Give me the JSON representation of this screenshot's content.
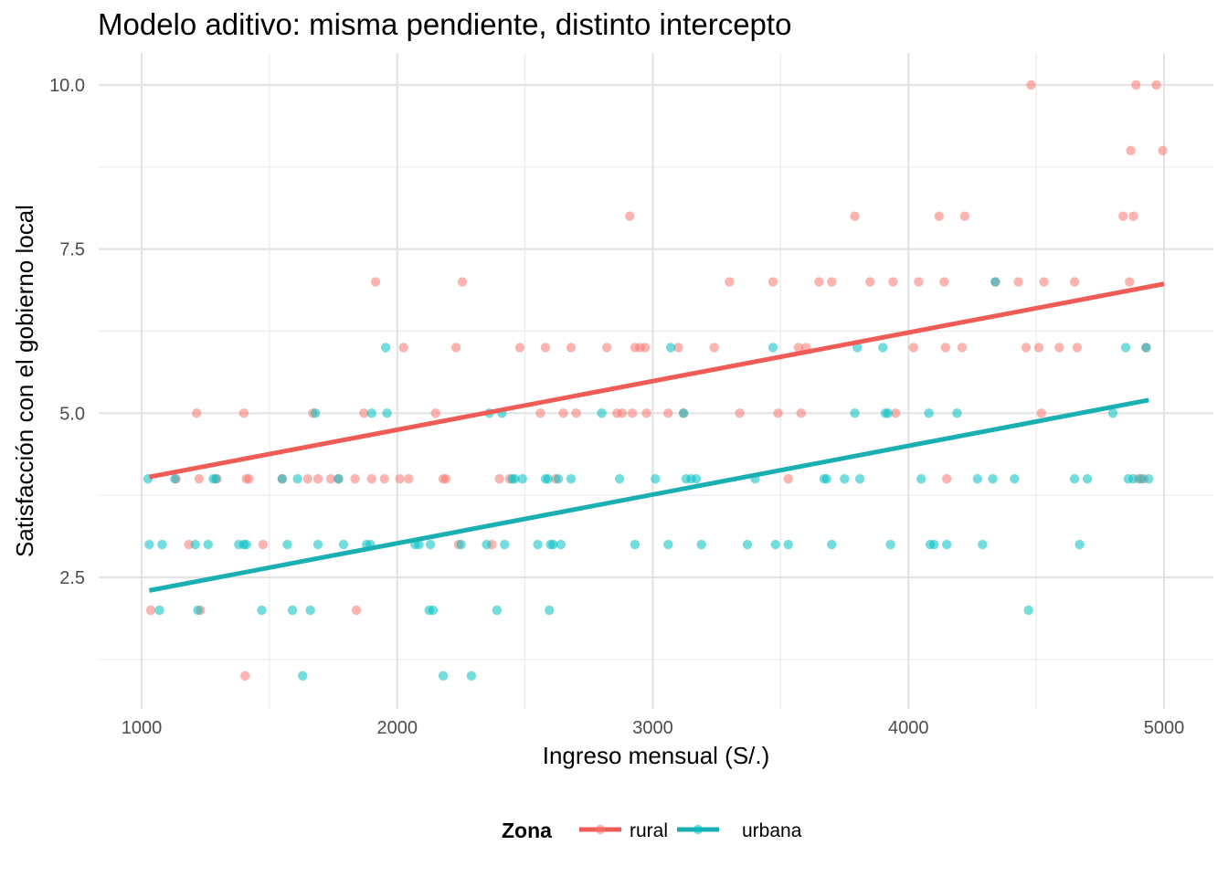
{
  "chart_data": {
    "type": "scatter",
    "title": "Modelo aditivo: misma pendiente, distinto intercepto",
    "xlabel": "Ingreso mensual (S/.)",
    "ylabel": "Satisfacción con el gobierno local",
    "xlim": [
      860,
      5200
    ],
    "ylim": [
      0.5,
      10.5
    ],
    "x_ticks": [
      1000,
      2000,
      3000,
      4000,
      5000
    ],
    "x_tick_labels": [
      "1000",
      "2000",
      "3000",
      "4000",
      "5000"
    ],
    "y_ticks": [
      2.5,
      5.0,
      7.5,
      10.0
    ],
    "y_tick_labels": [
      "2.5",
      "5.0",
      "7.5",
      "10.0"
    ],
    "grid": true,
    "legend": {
      "title": "Zona",
      "position": "bottom"
    },
    "series": [
      {
        "name": "rural",
        "color": "#F8766D",
        "line_color": "#EF5B55",
        "points": [
          [
            1036,
            2
          ],
          [
            1135,
            4
          ],
          [
            1185,
            3
          ],
          [
            1215,
            5
          ],
          [
            1225,
            4
          ],
          [
            1230,
            2
          ],
          [
            1295,
            4
          ],
          [
            1400,
            5
          ],
          [
            1405,
            1
          ],
          [
            1410,
            4
          ],
          [
            1420,
            4
          ],
          [
            1475,
            3
          ],
          [
            1550,
            4
          ],
          [
            1650,
            4
          ],
          [
            1670,
            5
          ],
          [
            1690,
            4
          ],
          [
            1740,
            4
          ],
          [
            1770,
            4
          ],
          [
            1835,
            4
          ],
          [
            1840,
            2
          ],
          [
            1870,
            5
          ],
          [
            1900,
            4
          ],
          [
            1915,
            7
          ],
          [
            1950,
            4
          ],
          [
            2010,
            4
          ],
          [
            2025,
            6
          ],
          [
            2045,
            4
          ],
          [
            2150,
            5
          ],
          [
            2180,
            4
          ],
          [
            2190,
            4
          ],
          [
            2230,
            6
          ],
          [
            2240,
            3
          ],
          [
            2255,
            7
          ],
          [
            2370,
            3
          ],
          [
            2400,
            4
          ],
          [
            2440,
            4
          ],
          [
            2480,
            6
          ],
          [
            2560,
            5
          ],
          [
            2580,
            6
          ],
          [
            2620,
            4
          ],
          [
            2650,
            5
          ],
          [
            2680,
            6
          ],
          [
            2700,
            5
          ],
          [
            2820,
            6
          ],
          [
            2860,
            5
          ],
          [
            2880,
            5
          ],
          [
            2910,
            8
          ],
          [
            2920,
            5
          ],
          [
            2930,
            6
          ],
          [
            2950,
            6
          ],
          [
            2970,
            6
          ],
          [
            2975,
            5
          ],
          [
            3060,
            5
          ],
          [
            3100,
            6
          ],
          [
            3120,
            5
          ],
          [
            3240,
            6
          ],
          [
            3300,
            7
          ],
          [
            3340,
            5
          ],
          [
            3470,
            7
          ],
          [
            3490,
            5
          ],
          [
            3530,
            4
          ],
          [
            3570,
            6
          ],
          [
            3580,
            5
          ],
          [
            3600,
            6
          ],
          [
            3650,
            7
          ],
          [
            3700,
            7
          ],
          [
            3790,
            8
          ],
          [
            3850,
            7
          ],
          [
            3940,
            7
          ],
          [
            3950,
            5
          ],
          [
            4020,
            6
          ],
          [
            4040,
            7
          ],
          [
            4120,
            8
          ],
          [
            4140,
            7
          ],
          [
            4145,
            6
          ],
          [
            4150,
            4
          ],
          [
            4210,
            6
          ],
          [
            4220,
            8
          ],
          [
            4340,
            7
          ],
          [
            4430,
            7
          ],
          [
            4460,
            6
          ],
          [
            4480,
            10
          ],
          [
            4510,
            6
          ],
          [
            4520,
            5
          ],
          [
            4530,
            7
          ],
          [
            4590,
            6
          ],
          [
            4650,
            7
          ],
          [
            4660,
            6
          ],
          [
            4840,
            8
          ],
          [
            4865,
            7
          ],
          [
            4870,
            9
          ],
          [
            4880,
            8
          ],
          [
            4890,
            10
          ],
          [
            4900,
            4
          ],
          [
            4920,
            4
          ],
          [
            4930,
            6
          ],
          [
            4970,
            10
          ],
          [
            4995,
            9
          ]
        ],
        "fit": [
          [
            1030,
            4.03
          ],
          [
            5000,
            6.97
          ]
        ]
      },
      {
        "name": "urbana",
        "color": "#00BFC4",
        "line_color": "#1AAFB2",
        "points": [
          [
            1025,
            4
          ],
          [
            1030,
            3
          ],
          [
            1070,
            2
          ],
          [
            1080,
            3
          ],
          [
            1130,
            4
          ],
          [
            1210,
            3
          ],
          [
            1220,
            2
          ],
          [
            1260,
            3
          ],
          [
            1280,
            4
          ],
          [
            1290,
            4
          ],
          [
            1380,
            3
          ],
          [
            1400,
            3
          ],
          [
            1410,
            3
          ],
          [
            1470,
            2
          ],
          [
            1550,
            4
          ],
          [
            1570,
            3
          ],
          [
            1590,
            2
          ],
          [
            1610,
            4
          ],
          [
            1630,
            1
          ],
          [
            1660,
            2
          ],
          [
            1680,
            5
          ],
          [
            1690,
            3
          ],
          [
            1770,
            4
          ],
          [
            1790,
            3
          ],
          [
            1880,
            3
          ],
          [
            1895,
            3
          ],
          [
            1900,
            5
          ],
          [
            1955,
            6
          ],
          [
            1960,
            5
          ],
          [
            2070,
            3
          ],
          [
            2085,
            3
          ],
          [
            2125,
            2
          ],
          [
            2130,
            3
          ],
          [
            2140,
            2
          ],
          [
            2180,
            1
          ],
          [
            2250,
            3
          ],
          [
            2290,
            1
          ],
          [
            2350,
            3
          ],
          [
            2360,
            5
          ],
          [
            2390,
            2
          ],
          [
            2410,
            5
          ],
          [
            2420,
            3
          ],
          [
            2450,
            4
          ],
          [
            2460,
            4
          ],
          [
            2490,
            4
          ],
          [
            2550,
            3
          ],
          [
            2580,
            4
          ],
          [
            2590,
            4
          ],
          [
            2595,
            2
          ],
          [
            2600,
            3
          ],
          [
            2610,
            3
          ],
          [
            2630,
            4
          ],
          [
            2640,
            3
          ],
          [
            2680,
            4
          ],
          [
            2800,
            5
          ],
          [
            2870,
            4
          ],
          [
            2930,
            3
          ],
          [
            3010,
            4
          ],
          [
            3060,
            3
          ],
          [
            3070,
            6
          ],
          [
            3120,
            5
          ],
          [
            3130,
            4
          ],
          [
            3150,
            4
          ],
          [
            3170,
            4
          ],
          [
            3190,
            3
          ],
          [
            3370,
            3
          ],
          [
            3400,
            4
          ],
          [
            3470,
            6
          ],
          [
            3480,
            3
          ],
          [
            3530,
            3
          ],
          [
            3670,
            4
          ],
          [
            3680,
            4
          ],
          [
            3700,
            3
          ],
          [
            3750,
            4
          ],
          [
            3790,
            5
          ],
          [
            3800,
            6
          ],
          [
            3810,
            4
          ],
          [
            3900,
            6
          ],
          [
            3910,
            5
          ],
          [
            3920,
            5
          ],
          [
            3930,
            3
          ],
          [
            4050,
            4
          ],
          [
            4080,
            5
          ],
          [
            4085,
            3
          ],
          [
            4100,
            3
          ],
          [
            4150,
            3
          ],
          [
            4190,
            5
          ],
          [
            4270,
            4
          ],
          [
            4290,
            3
          ],
          [
            4330,
            4
          ],
          [
            4340,
            7
          ],
          [
            4415,
            4
          ],
          [
            4470,
            2
          ],
          [
            4650,
            4
          ],
          [
            4670,
            3
          ],
          [
            4700,
            4
          ],
          [
            4800,
            5
          ],
          [
            4850,
            6
          ],
          [
            4860,
            4
          ],
          [
            4880,
            4
          ],
          [
            4910,
            4
          ],
          [
            4930,
            6
          ],
          [
            4940,
            4
          ]
        ],
        "fit": [
          [
            1030,
            2.3
          ],
          [
            4940,
            5.2
          ]
        ]
      }
    ]
  }
}
